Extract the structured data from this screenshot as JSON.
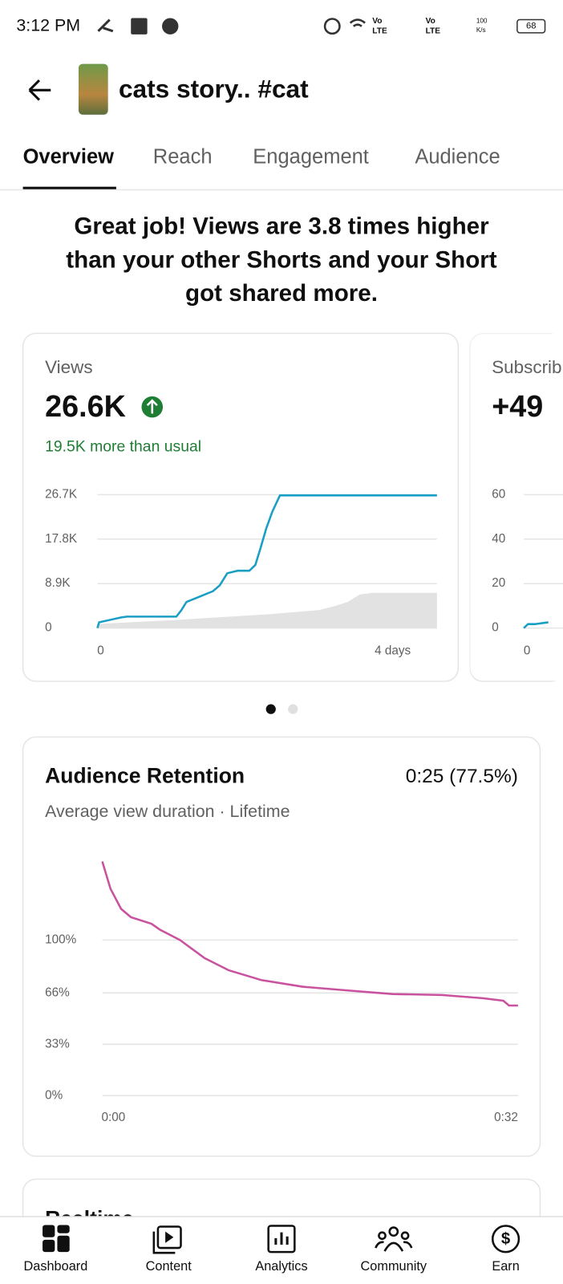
{
  "status_bar": {
    "time": "3:12 PM",
    "indicators": [
      "Vo",
      "LTE",
      "Vo",
      "LTE",
      "100",
      "K/s",
      "68"
    ]
  },
  "header": {
    "title": "cats story.. #cat"
  },
  "tabs": [
    "Overview",
    "Reach",
    "Engagement",
    "Audience"
  ],
  "headline": [
    "Great job! Views are 3.8 times higher",
    "than your other Shorts and your Short",
    "got shared more."
  ],
  "views_card": {
    "label": "Views",
    "value": "26.6K",
    "note": "19.5K more than usual",
    "chart": {
      "type": "line",
      "xlim": [
        0,
        4
      ],
      "ylim": [
        0,
        26700
      ],
      "yticks": [
        {
          "value": 26700,
          "label": "26.7K"
        },
        {
          "value": 17800,
          "label": "17.8K"
        },
        {
          "value": 8900,
          "label": "8.9K"
        },
        0
      ],
      "xticks": [
        0,
        {
          "value": 4,
          "label": "4 days"
        }
      ],
      "area": {
        "color": "#e2e2e2",
        "x": [
          0,
          0.93,
          2.03,
          2.61,
          2.8,
          2.95,
          3.09,
          3.24,
          4
        ],
        "values": [
          820,
          1640,
          2780,
          3600,
          4420,
          5240,
          6720,
          7040,
          7040
        ]
      },
      "series": [
        {
          "color": "#1a9fc4",
          "x": [
            0,
            0.02,
            0.15,
            0.28,
            0.35,
            0.93,
            0.99,
            1.05,
            1.17,
            1.36,
            1.44,
            1.53,
            1.65,
            1.79,
            1.86,
            1.92,
            1.99,
            2.06,
            2.15,
            4
          ],
          "values": [
            0,
            1150,
            1640,
            2130,
            2290,
            2290,
            3600,
            5240,
            6060,
            7370,
            8520,
            10970,
            11470,
            11470,
            12610,
            15890,
            19990,
            23260,
            26540,
            26540
          ]
        }
      ]
    }
  },
  "subscribers_card": {
    "label": "Subscrib",
    "value": "+49",
    "chart": {
      "type": "line",
      "xlim": [
        0,
        4
      ],
      "ylim": [
        0,
        60
      ],
      "yticks": [
        60,
        40,
        20,
        0
      ],
      "xticks": [
        0
      ],
      "series": [
        {
          "color": "#1a9fc4",
          "x": [
            0,
            0.05,
            0.14,
            0.29
          ],
          "values": [
            0,
            1.8,
            1.8,
            2.6
          ]
        }
      ]
    }
  },
  "pager": {
    "count": 2,
    "active": 0
  },
  "retention_card": {
    "title": "Audience Retention",
    "value": "0:25 (77.5%)",
    "subtitle": "Average view duration · Lifetime",
    "chart": {
      "type": "line",
      "xlim": [
        0,
        32
      ],
      "ylim": [
        0,
        150
      ],
      "yticks": [
        {
          "value": 100,
          "label": "100%"
        },
        {
          "value": 66,
          "label": "66%"
        },
        {
          "value": 33,
          "label": "33%"
        },
        {
          "value": 0,
          "label": "0%"
        }
      ],
      "xticks": [
        {
          "value": 0,
          "label": "0:00"
        },
        {
          "value": 32,
          "label": "0:32"
        }
      ],
      "series": [
        {
          "color": "#c9529e",
          "x": [
            0,
            0.63,
            1.45,
            2.2,
            3.78,
            4.41,
            5.98,
            7.87,
            9.76,
            12.28,
            15.43,
            19.21,
            22.36,
            26.14,
            29.29,
            30.87,
            31.31,
            32
          ],
          "values": [
            150.5,
            133,
            120,
            114.7,
            110.5,
            106.8,
            100,
            88.4,
            80.5,
            74.2,
            70,
            67.4,
            65.3,
            64.7,
            62.6,
            61,
            57.9,
            57.9
          ]
        }
      ]
    }
  },
  "next_card": {
    "title": "Realtime"
  },
  "bottom_nav": [
    "Dashboard",
    "Content",
    "Analytics",
    "Community",
    "Earn"
  ]
}
